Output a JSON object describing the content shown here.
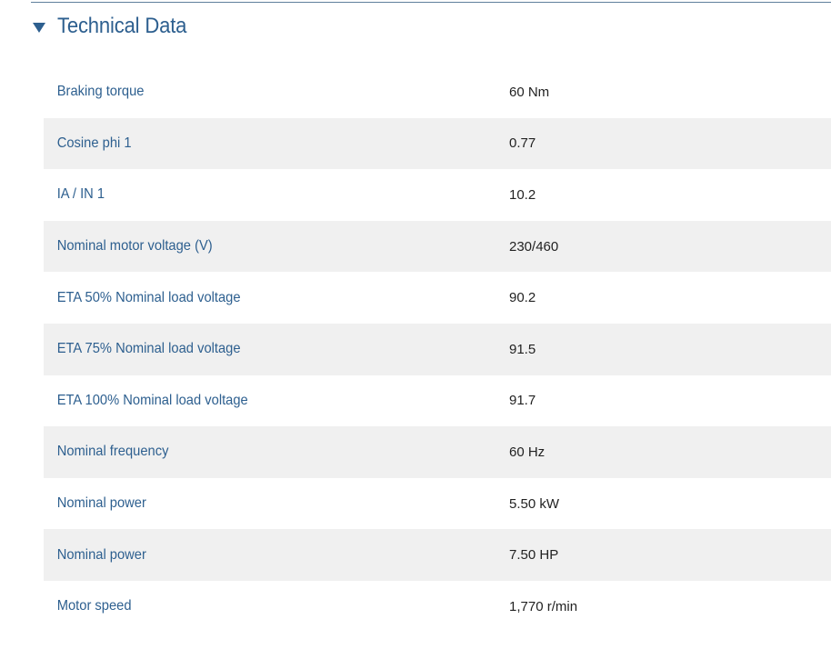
{
  "section": {
    "title": "Technical Data",
    "toggle_icon": "triangle-down-icon"
  },
  "colors": {
    "accent": "#2d5f8f",
    "row_alt_background": "#f0f0f0",
    "value_text": "#222222"
  },
  "rows": [
    {
      "label": "Braking torque",
      "value": "60 Nm"
    },
    {
      "label": "Cosine phi 1",
      "value": "0.77"
    },
    {
      "label": "IA / IN 1",
      "value": "10.2"
    },
    {
      "label": "Nominal motor voltage (V)",
      "value": "230/460"
    },
    {
      "label": "ETA 50% Nominal load voltage",
      "value": "90.2"
    },
    {
      "label": "ETA 75% Nominal load voltage",
      "value": "91.5"
    },
    {
      "label": "ETA 100% Nominal load voltage",
      "value": "91.7"
    },
    {
      "label": "Nominal frequency",
      "value": "60 Hz"
    },
    {
      "label": "Nominal power",
      "value": "5.50 kW"
    },
    {
      "label": "Nominal power",
      "value": "7.50 HP"
    },
    {
      "label": "Motor speed",
      "value": "1,770 r/min"
    }
  ]
}
